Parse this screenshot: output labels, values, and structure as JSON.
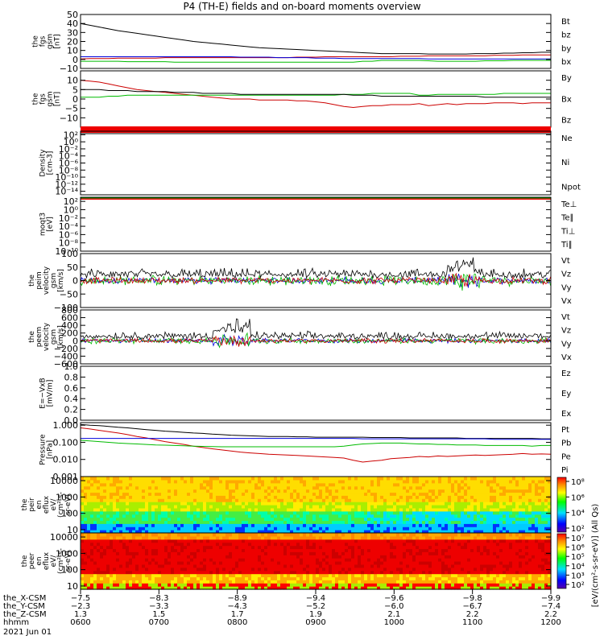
{
  "title": "P4 (TH-E) fields and on-board moments overview",
  "chart_data": {
    "type": "line",
    "panels": [
      {
        "ylabel": [
          "the",
          "fgs",
          "gsm",
          "[nT]"
        ],
        "ylim": [
          -10,
          50
        ],
        "ticks": [
          -10,
          0,
          10,
          20,
          30,
          40,
          50
        ],
        "tick_labels": [
          "−10",
          "0",
          "10",
          "20",
          "30",
          "40",
          "50"
        ],
        "legend": [
          {
            "label": "Bt",
            "color": "#000000"
          },
          {
            "label": "bz",
            "color": "#cc0000"
          },
          {
            "label": "by",
            "color": "#00bb00"
          },
          {
            "label": "bx",
            "color": "#0000dd"
          }
        ],
        "series": [
          {
            "color": "#000000",
            "values": [
              40,
              38,
              36,
              34,
              32,
              30.5,
              29,
              27.5,
              26,
              24.5,
              23,
              21.5,
              20,
              19,
              18,
              17,
              16,
              15,
              14,
              13,
              12.5,
              12,
              11.5,
              11,
              10.5,
              10,
              9.5,
              9,
              8.5,
              8,
              7.5,
              7,
              6.5,
              6.5,
              6.5,
              6.5,
              6.5,
              6,
              6,
              6,
              6,
              6,
              6.5,
              6.5,
              6.5,
              7,
              7,
              7.5,
              7.5,
              8,
              8
            ]
          },
          {
            "color": "#00bb00",
            "values": [
              -2,
              -2,
              -2,
              -2,
              -2,
              -2.5,
              -2.5,
              -2.5,
              -2.5,
              -2.5,
              -3,
              -3,
              -3,
              -3,
              -3,
              -3,
              -3,
              -3,
              -3,
              -3,
              -3,
              -3,
              -3,
              -3,
              -3,
              -3,
              -3,
              -3,
              -3,
              -3,
              -2,
              -2,
              -1,
              -1,
              -1,
              -1,
              -1,
              -1.5,
              -2,
              -2,
              -2,
              -2,
              -2,
              -1.5,
              -1.5,
              -1.5,
              -1,
              -1,
              -1,
              -1,
              -1
            ]
          },
          {
            "color": "#cc0000",
            "values": [
              0.5,
              1,
              1,
              1,
              1.5,
              1.5,
              1.5,
              1.5,
              1.5,
              2,
              2,
              2,
              2,
              2,
              2,
              2,
              2,
              2,
              2,
              2,
              2,
              2,
              2,
              2.5,
              2.5,
              2.5,
              3,
              3,
              3,
              3,
              3,
              3,
              3,
              3,
              3.5,
              3.5,
              3.5,
              4,
              4,
              4,
              4,
              4,
              4,
              4,
              4.5,
              4.5,
              4.5,
              5,
              5,
              5,
              5
            ]
          },
          {
            "color": "#0000dd",
            "values": [
              3,
              3,
              3,
              3,
              3,
              3,
              3,
              3,
              3,
              3,
              3,
              3,
              3,
              3,
              3,
              3,
              3,
              2.5,
              2.5,
              2.5,
              2.5,
              2,
              2,
              2,
              2,
              1.5,
              1.5,
              1.5,
              1,
              1,
              1,
              1,
              1,
              1,
              1,
              1,
              1,
              0.5,
              0.5,
              0.5,
              0.5,
              0.5,
              0.5,
              0.5,
              0.5,
              0.5,
              0.5,
              0.5,
              0.5,
              0.5,
              0.5
            ]
          }
        ]
      },
      {
        "ylabel": [
          "the",
          "fgs",
          "gsm",
          "[nT]"
        ],
        "ylim": [
          -15,
          15
        ],
        "ticks": [
          -10,
          -5,
          0,
          5,
          10
        ],
        "tick_labels": [
          "−10",
          "−5",
          "0",
          "5",
          "10"
        ],
        "legend": [
          {
            "label": "By",
            "color": "#00bb00"
          },
          {
            "label": "Bx",
            "color": "#000000"
          },
          {
            "label": "Bz",
            "color": "#cc0000"
          }
        ],
        "series": [
          {
            "color": "#cc0000",
            "values": [
              10,
              9.5,
              9,
              8,
              7,
              6,
              5,
              4.5,
              4,
              3.5,
              3,
              2.5,
              2,
              1.5,
              1,
              0.5,
              0,
              0,
              0,
              -0.5,
              -0.5,
              -0.5,
              -0.5,
              -1,
              -1,
              -1.5,
              -2,
              -3,
              -4,
              -4.5,
              -4,
              -3.5,
              -3.5,
              -3,
              -3,
              -3,
              -2.5,
              -3.5,
              -3,
              -2.5,
              -3,
              -2.5,
              -2.5,
              -2.5,
              -2,
              -2,
              -2,
              -2.5,
              -2,
              -2,
              -2
            ]
          },
          {
            "color": "#00bb00",
            "values": [
              1,
              1,
              1,
              1.5,
              1.5,
              2,
              2,
              2,
              2,
              2,
              2,
              2,
              2,
              2,
              2,
              2,
              2,
              2,
              2,
              2,
              2,
              2,
              2,
              2,
              2,
              2,
              2,
              2,
              2.5,
              2.5,
              2.5,
              3,
              3,
              3,
              3,
              3,
              2,
              2,
              2.5,
              2.5,
              2.5,
              2.5,
              2.5,
              2.5,
              2.5,
              3,
              3,
              3,
              3,
              3,
              3
            ]
          },
          {
            "color": "#000000",
            "values": [
              5,
              5,
              5,
              4.5,
              4.5,
              4.5,
              4,
              4,
              4,
              4,
              3.5,
              3.5,
              3.5,
              3,
              3,
              3,
              3,
              2.5,
              2.5,
              2.5,
              2.5,
              2.5,
              2.5,
              2.5,
              2.5,
              2.5,
              2.5,
              2.5,
              2.5,
              2,
              2,
              2,
              1.5,
              1.5,
              1.5,
              1.5,
              1.5,
              1.5,
              1.5,
              1.5,
              1.5,
              1.5,
              1.5,
              1,
              1,
              1,
              1,
              1,
              1,
              1,
              1
            ]
          }
        ]
      },
      {
        "ylabel": [
          "Density",
          "[cm-3]"
        ],
        "log": true,
        "ylim_exp": [
          -15,
          3
        ],
        "tick_exp": [
          -14,
          -12,
          -10,
          -8,
          -6,
          -4,
          -2,
          0,
          2
        ],
        "legend": [
          {
            "label": "Ne",
            "color": "#cc0000"
          },
          {
            "label": "Ni",
            "color": "#000000"
          },
          {
            "label": "Npot",
            "color": "#0000dd"
          }
        ]
      },
      {
        "ylabel": [
          "moqt3",
          "[eV]"
        ],
        "log": true,
        "ylim_exp": [
          -10,
          3
        ],
        "tick_exp": [
          -10,
          -8,
          -6,
          -4,
          -2,
          0,
          2
        ],
        "legend": [
          {
            "label": "Te⊥",
            "color": "#cc0000"
          },
          {
            "label": "Te∥",
            "color": "#000000"
          },
          {
            "label": "Ti⊥",
            "color": "#0000dd"
          },
          {
            "label": "Ti∥",
            "color": "#00bb00"
          }
        ]
      },
      {
        "ylabel": [
          "the",
          "peim",
          "velocity",
          "gsm",
          "[km/s]"
        ],
        "ylim": [
          -100,
          100
        ],
        "ticks": [
          -100,
          -50,
          0,
          50,
          100
        ],
        "tick_labels": [
          "−100",
          "−50",
          "0",
          "50",
          "100"
        ],
        "legend": [
          {
            "label": "Vt",
            "color": "#000000"
          },
          {
            "label": "Vz",
            "color": "#cc0000"
          },
          {
            "label": "Vy",
            "color": "#00bb00"
          },
          {
            "label": "Vx",
            "color": "#0000dd"
          }
        ]
      },
      {
        "ylabel": [
          "the",
          "peem",
          "velocity",
          "gsm",
          "[km/s]"
        ],
        "ylim": [
          -600,
          800
        ],
        "ticks": [
          -600,
          -400,
          -200,
          0,
          200,
          400,
          600,
          800
        ],
        "tick_labels": [
          "−600",
          "−400",
          "−200",
          "0",
          "200",
          "400",
          "600",
          "800"
        ],
        "legend": [
          {
            "label": "Vt",
            "color": "#000000"
          },
          {
            "label": "Vz",
            "color": "#cc0000"
          },
          {
            "label": "Vy",
            "color": "#00bb00"
          },
          {
            "label": "Vx",
            "color": "#0000dd"
          }
        ]
      },
      {
        "ylabel": [
          "E=−VxB",
          "[mV/m]"
        ],
        "ylim": [
          0,
          1
        ],
        "ticks": [
          0,
          0.2,
          0.4,
          0.6,
          0.8,
          1.0
        ],
        "tick_labels": [
          "0.0",
          "0.2",
          "0.4",
          "0.6",
          "0.8",
          "1.0"
        ],
        "legend": [
          {
            "label": "Ez",
            "color": "#cc0000"
          },
          {
            "label": "Ey",
            "color": "#00bb00"
          },
          {
            "label": "Ex",
            "color": "#0000dd"
          }
        ]
      },
      {
        "ylabel": [
          "Pressure",
          "[nPa]"
        ],
        "log": true,
        "ylim_exp": [
          -3,
          0.15
        ],
        "tick_exp": [
          -3,
          -2,
          -1,
          0
        ],
        "tick_labels": [
          "0.001",
          "0.010",
          "0.100",
          "1.000"
        ],
        "legend": [
          {
            "label": "Pt",
            "color": "#000000"
          },
          {
            "label": "Pb",
            "color": "#cc0000"
          },
          {
            "label": "Pe",
            "color": "#00bb00"
          },
          {
            "label": "Pi",
            "color": "#0000dd"
          }
        ],
        "series": [
          {
            "color": "#000000",
            "values": [
              1.1,
              1.0,
              0.95,
              0.85,
              0.75,
              0.7,
              0.62,
              0.55,
              0.5,
              0.45,
              0.42,
              0.38,
              0.35,
              0.33,
              0.3,
              0.28,
              0.26,
              0.25,
              0.24,
              0.23,
              0.22,
              0.22,
              0.22,
              0.21,
              0.21,
              0.2,
              0.2,
              0.2,
              0.2,
              0.2,
              0.2,
              0.19,
              0.19,
              0.19,
              0.19,
              0.18,
              0.18,
              0.18,
              0.18,
              0.18,
              0.18,
              0.17,
              0.17,
              0.17,
              0.17,
              0.17,
              0.17,
              0.17,
              0.17,
              0.16,
              0.16
            ]
          },
          {
            "color": "#cc0000",
            "values": [
              0.7,
              0.6,
              0.5,
              0.42,
              0.35,
              0.28,
              0.22,
              0.18,
              0.14,
              0.11,
              0.09,
              0.075,
              0.06,
              0.05,
              0.042,
              0.036,
              0.031,
              0.027,
              0.024,
              0.022,
              0.02,
              0.019,
              0.018,
              0.017,
              0.016,
              0.015,
              0.014,
              0.013,
              0.012,
              0.009,
              0.007,
              0.008,
              0.009,
              0.011,
              0.012,
              0.013,
              0.015,
              0.014,
              0.016,
              0.015,
              0.016,
              0.017,
              0.018,
              0.017,
              0.018,
              0.019,
              0.02,
              0.022,
              0.02,
              0.021,
              0.02
            ]
          },
          {
            "color": "#0000dd",
            "values": [
              0.17,
              0.17,
              0.17,
              0.17,
              0.17,
              0.17,
              0.17,
              0.17,
              0.17,
              0.17,
              0.17,
              0.17,
              0.17,
              0.17,
              0.17,
              0.17,
              0.17,
              0.17,
              0.17,
              0.17,
              0.17,
              0.17,
              0.17,
              0.17,
              0.17,
              0.17,
              0.17,
              0.17,
              0.17,
              0.17,
              0.16,
              0.16,
              0.16,
              0.16,
              0.16,
              0.16,
              0.16,
              0.16,
              0.16,
              0.16,
              0.16,
              0.16,
              0.16,
              0.16,
              0.15,
              0.15,
              0.15,
              0.15,
              0.15,
              0.15,
              0.15
            ]
          },
          {
            "color": "#00bb00",
            "values": [
              0.13,
              0.12,
              0.11,
              0.1,
              0.09,
              0.085,
              0.08,
              0.075,
              0.07,
              0.068,
              0.065,
              0.063,
              0.06,
              0.058,
              0.056,
              0.055,
              0.055,
              0.055,
              0.055,
              0.055,
              0.055,
              0.055,
              0.055,
              0.055,
              0.055,
              0.055,
              0.055,
              0.055,
              0.06,
              0.07,
              0.08,
              0.085,
              0.09,
              0.09,
              0.09,
              0.085,
              0.08,
              0.08,
              0.075,
              0.075,
              0.07,
              0.07,
              0.07,
              0.065,
              0.065,
              0.065,
              0.065,
              0.065,
              0.06,
              0.065,
              0.065
            ]
          }
        ]
      },
      {
        "ylabel": [
          "the",
          "peir",
          "en",
          "eflux",
          "eV/",
          "(cm²-s-",
          "sr-eV)"
        ],
        "type": "heatmap",
        "ticks": [
          10,
          100,
          1000,
          10000
        ],
        "tick_labels": [
          "10",
          "100",
          "1000",
          "10000"
        ],
        "colorbar_ticks": [
          "10²",
          "10⁴",
          "10⁶",
          "10⁸"
        ]
      },
      {
        "ylabel": [
          "the",
          "peer",
          "en",
          "eflux",
          "eV/",
          "(cm²-s-",
          "sr-eV)"
        ],
        "type": "heatmap",
        "ticks": [
          10,
          100,
          1000,
          10000
        ],
        "tick_labels": [
          "10",
          "100",
          "1000",
          "10000"
        ],
        "colorbar_ticks": [
          "10²",
          "10³",
          "10⁴",
          "10⁵",
          "10⁶",
          "10⁷"
        ]
      }
    ],
    "colorbar_label": "[eV/(cm²-s-sr-eV)] (All Qs)",
    "xaxis": {
      "rows": [
        {
          "label": "the_X-CSM",
          "values": [
            "−7.5",
            "−8.3",
            "−8.9",
            "−9.4",
            "−9.6",
            "−9.8",
            "−9.9"
          ]
        },
        {
          "label": "the_Y-CSM",
          "values": [
            "−2.3",
            "−3.3",
            "−4.3",
            "−5.2",
            "−6.0",
            "−6.7",
            "−7.4"
          ]
        },
        {
          "label": "the_Z-CSM",
          "values": [
            "1.3",
            "1.5",
            "1.7",
            "1.9",
            "2.1",
            "2.2",
            "2.2"
          ]
        },
        {
          "label": "hhmm",
          "values": [
            "0600",
            "0700",
            "0800",
            "0900",
            "1000",
            "1100",
            "1200"
          ]
        }
      ],
      "date": "2021 Jun 01"
    }
  }
}
